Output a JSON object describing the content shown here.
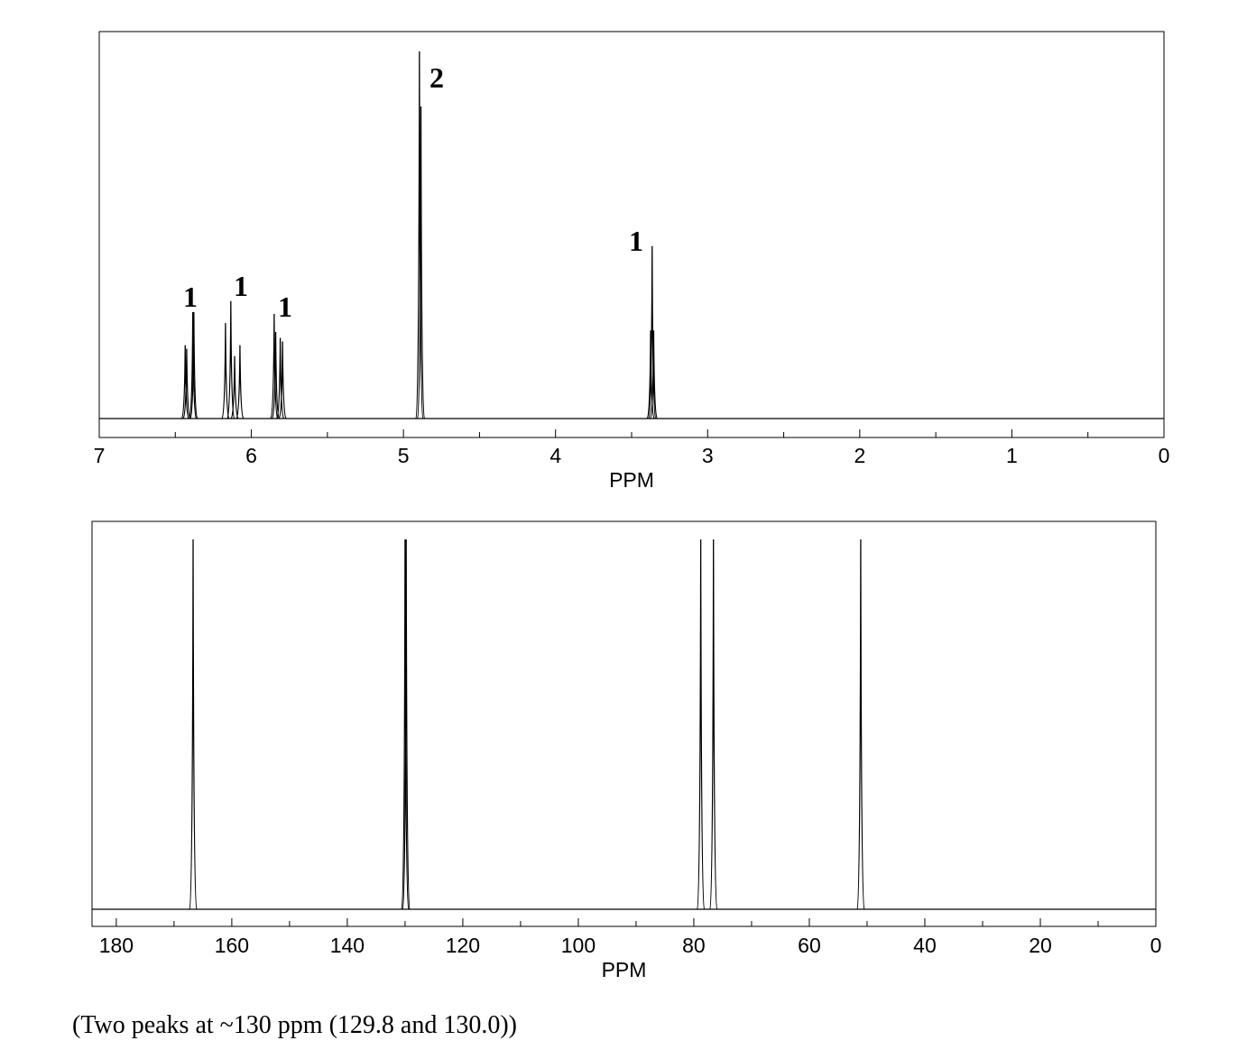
{
  "chart_data": [
    {
      "type": "spectrum",
      "x": [
        6.435,
        6.425,
        6.385,
        6.378,
        6.17,
        6.135,
        6.11,
        6.075,
        5.85,
        5.84,
        5.81,
        5.795,
        4.895,
        4.885,
        3.375,
        3.365,
        3.355
      ],
      "values": [
        20,
        19,
        29,
        29,
        26,
        32,
        17,
        20,
        28.5,
        23.6,
        22,
        21,
        100,
        85,
        24,
        47,
        24
      ],
      "color": "#000000",
      "annotations": [
        "1",
        "1",
        "1",
        "2",
        "1"
      ],
      "xlabel": "PPM",
      "xlim": [
        7,
        0
      ],
      "xticks": [
        7,
        6,
        5,
        4,
        3,
        2,
        1,
        0
      ],
      "xminor_ticks": [
        6.5,
        5.5,
        4.5,
        3.5,
        2.5,
        1.5,
        0.5
      ]
    },
    {
      "type": "spectrum",
      "x": [
        166.7,
        130.0,
        129.8,
        78.8,
        76.6,
        51.1
      ],
      "values": [
        100,
        100,
        100,
        100,
        100,
        100
      ],
      "color": "#000000",
      "xlabel": "PPM",
      "xlim": [
        184.2,
        0
      ],
      "xticks": [
        180,
        160,
        140,
        120,
        100,
        80,
        60,
        40,
        20,
        0
      ],
      "xminor_ticks": [
        170,
        150,
        130,
        110,
        90,
        70,
        50,
        30,
        10
      ]
    }
  ],
  "caption": "(Two peaks at ~130 ppm (129.8 and 130.0))"
}
